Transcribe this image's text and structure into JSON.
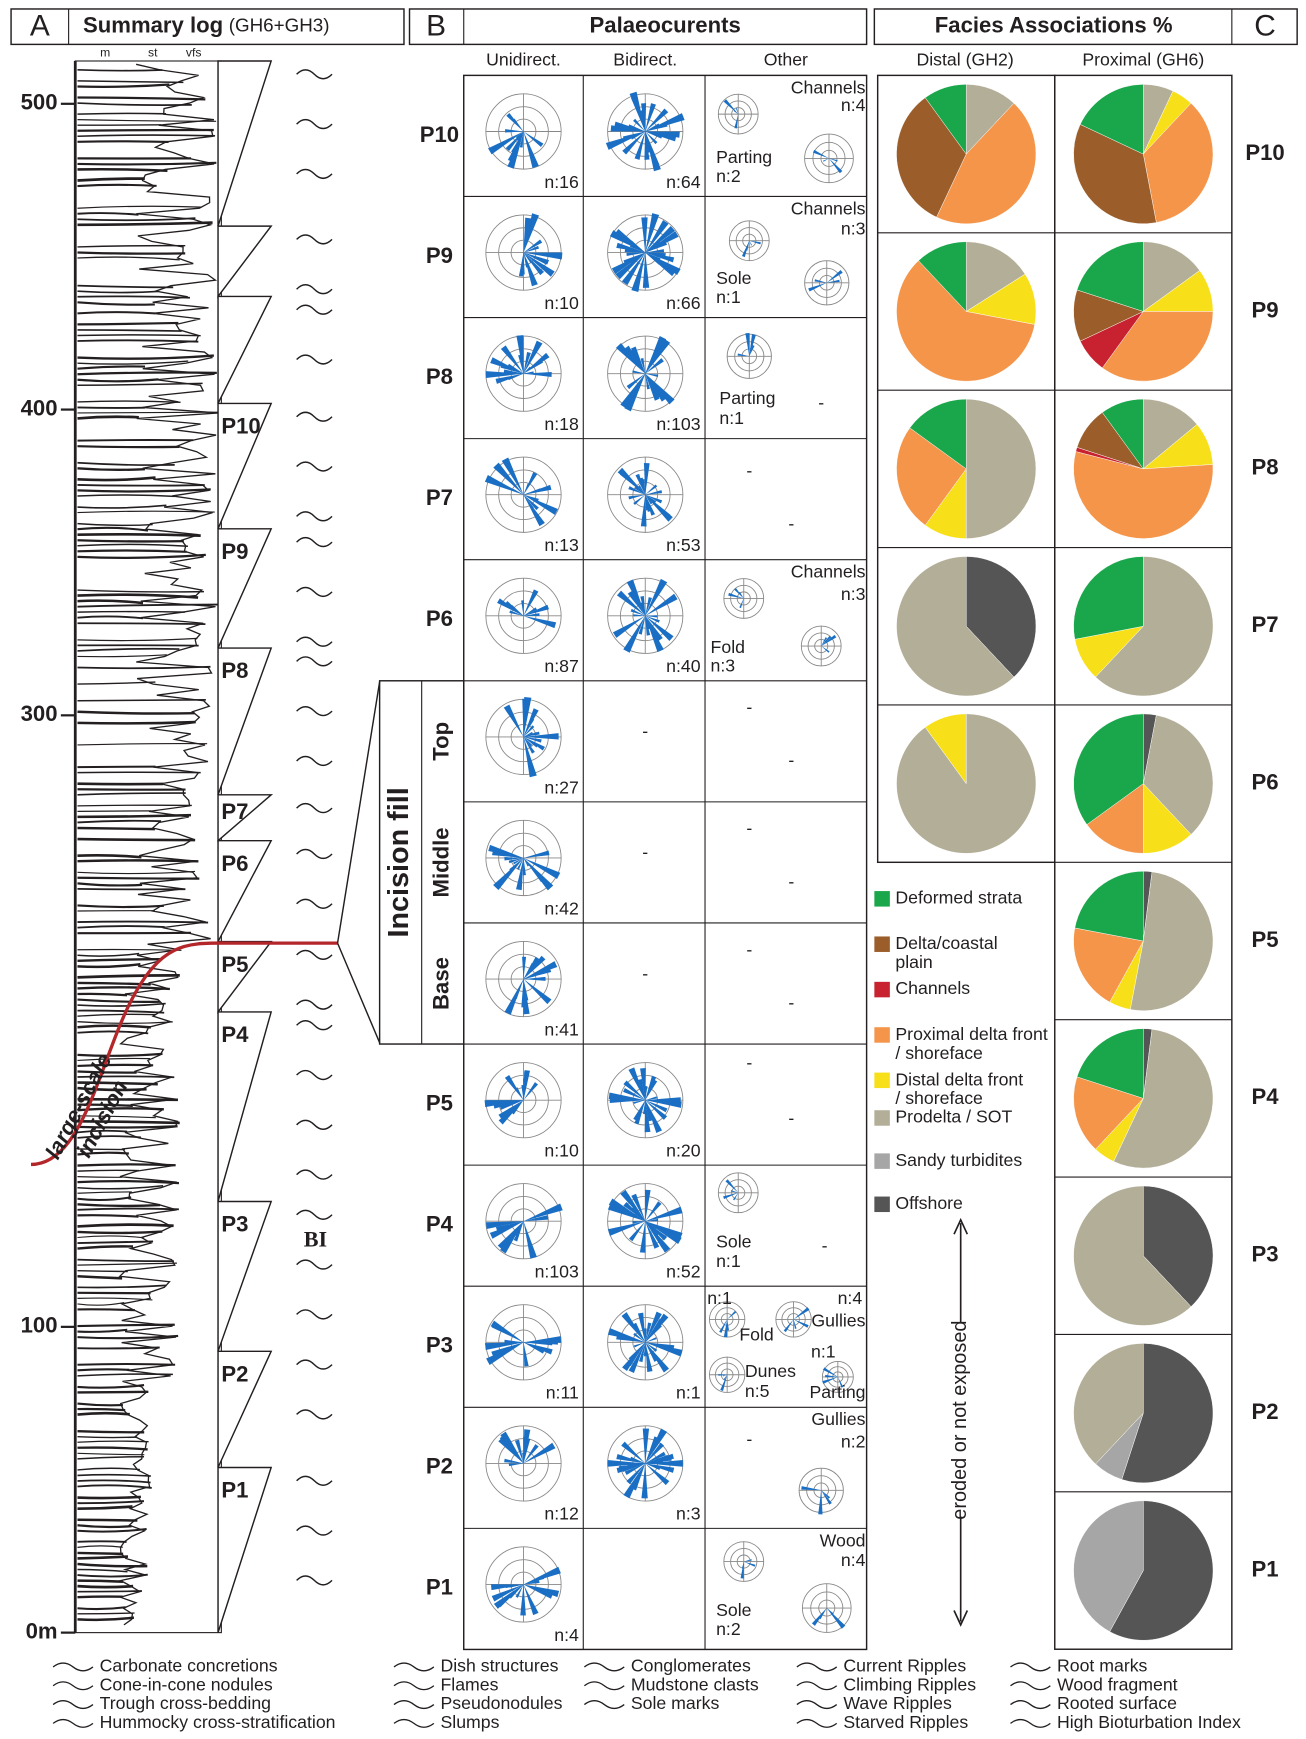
{
  "panel_a": {
    "letter": "A",
    "title": "Summary log",
    "subtitle": "(GH6+GH3)",
    "grain_sizes": [
      "m",
      "st",
      "vfs"
    ],
    "ylim": [
      0,
      514
    ],
    "yticks": [
      {
        "value": 0,
        "label": "0m"
      },
      100,
      300,
      400,
      500
    ],
    "sequences": [
      {
        "name": "P1",
        "base": 0,
        "top": 54
      },
      {
        "name": "P2",
        "base": 54,
        "top": 92
      },
      {
        "name": "P3",
        "base": 92,
        "top": 141
      },
      {
        "name": "P4",
        "base": 141,
        "top": 203
      },
      {
        "name": "P5",
        "base": 203,
        "top": 226
      },
      {
        "name": "P6",
        "base": 226,
        "top": 259
      },
      {
        "name": "P7",
        "base": 259,
        "top": 274
      },
      {
        "name": "P8",
        "base": 274,
        "top": 322
      },
      {
        "name": "P9",
        "base": 322,
        "top": 361
      },
      {
        "name": "P10",
        "base": 361,
        "top": 402
      },
      {
        "name": null,
        "base": 402,
        "top": 437
      },
      {
        "name": null,
        "base": 437,
        "top": 460
      },
      {
        "name": null,
        "base": 460,
        "top": 514
      }
    ],
    "annotation": [
      "large-scale",
      "incision"
    ],
    "bi_symbol": "BI"
  },
  "panel_b": {
    "letter": "B",
    "title": "Palaeocurents",
    "columns": [
      "Unidirect.",
      "Bidirect.",
      "Other"
    ],
    "incision_label": "Incision fill",
    "rows": [
      {
        "label": "P10",
        "unidirectional": "n:16",
        "bidirectional": "n:64",
        "other": [
          "Channels",
          "n:4",
          "Parting",
          "n:2"
        ]
      },
      {
        "label": "P9",
        "unidirectional": "n:10",
        "bidirectional": "n:66",
        "other": [
          "Channels",
          "n:3",
          "Sole",
          "n:1"
        ]
      },
      {
        "label": "P8",
        "unidirectional": "n:18",
        "bidirectional": "n:103",
        "other": [
          "Parting",
          "n:1",
          "-"
        ]
      },
      {
        "label": "P7",
        "unidirectional": "n:13",
        "bidirectional": "n:53",
        "other": [
          "-",
          "-"
        ]
      },
      {
        "label": "P6",
        "unidirectional": "n:87",
        "bidirectional": "n:40",
        "other": [
          "Channels",
          "n:3",
          "Fold",
          "n:3"
        ]
      },
      {
        "label": "Top",
        "unidirectional": "n:27",
        "bidirectional": "-",
        "other": [
          "-",
          "-"
        ]
      },
      {
        "label": "Middle",
        "unidirectional": "n:42",
        "bidirectional": "-",
        "other": [
          "-",
          "-"
        ]
      },
      {
        "label": "Base",
        "unidirectional": "n:41",
        "bidirectional": "-",
        "other": [
          "-",
          "-"
        ]
      },
      {
        "label": "P5",
        "unidirectional": "n:10",
        "bidirectional": "n:20",
        "other": [
          "-",
          "-"
        ]
      },
      {
        "label": "P4",
        "unidirectional": "n:103",
        "bidirectional": "n:52",
        "other": [
          "Sole",
          "n:1",
          "-"
        ]
      },
      {
        "label": "P3",
        "unidirectional": "n:11",
        "bidirectional": "n:1",
        "other": [
          "n:1",
          "Fold",
          "n:4",
          "Gullies",
          "Dunes",
          "n:5",
          "n:1",
          "Parting"
        ]
      },
      {
        "label": "P2",
        "unidirectional": "n:12",
        "bidirectional": "n:3",
        "other": [
          "-",
          "Gullies",
          "n:2"
        ]
      },
      {
        "label": "P1",
        "unidirectional": "n:4",
        "bidirectional": null,
        "other": [
          "Sole",
          "n:2",
          "Wood",
          "n:4"
        ]
      }
    ]
  },
  "panel_c": {
    "letter": "C",
    "title": "Facies Associations %",
    "distal_title": "Distal (GH2)",
    "proximal_title": "Proximal (GH6)",
    "legend": [
      {
        "name": "Deformed strata",
        "color": "#1aa64a"
      },
      {
        "name": "Delta/coastal plain",
        "color": "#9b5e2a"
      },
      {
        "name": "Channels",
        "color": "#c8212f"
      },
      {
        "name": "Proximal delta front / shoreface",
        "color": "#f4954a"
      },
      {
        "name": "Distal delta front / shoreface",
        "color": "#f7e01a"
      },
      {
        "name": "Prodelta / SOT",
        "color": "#b3ae98"
      },
      {
        "name": "Sandy turbidites",
        "color": "#a6a6a6"
      },
      {
        "name": "Offshore",
        "color": "#555555"
      }
    ],
    "distal": [
      [
        10,
        33,
        0,
        45,
        0,
        12,
        0,
        0
      ],
      [
        12,
        0,
        0,
        60,
        12,
        16,
        0,
        0
      ],
      [
        15,
        0,
        0,
        25,
        10,
        50,
        0,
        0
      ],
      [
        0,
        0,
        0,
        0,
        0,
        62,
        0,
        38
      ],
      [
        0,
        0,
        0,
        0,
        10,
        90,
        0,
        0
      ]
    ],
    "proximal": [
      {
        "label": "P10",
        "values": [
          18,
          35,
          0,
          35,
          5,
          7,
          0,
          0
        ]
      },
      {
        "label": "P9",
        "values": [
          20,
          12,
          8,
          35,
          10,
          15,
          0,
          0
        ]
      },
      {
        "label": "P8",
        "values": [
          10,
          10,
          1,
          55,
          10,
          14,
          0,
          0
        ]
      },
      {
        "label": "P7",
        "values": [
          28,
          0,
          0,
          0,
          10,
          62,
          0,
          0
        ]
      },
      {
        "label": "P6",
        "values": [
          35,
          0,
          0,
          15,
          12,
          35,
          0,
          3
        ]
      },
      {
        "label": "P5",
        "values": [
          22,
          0,
          0,
          20,
          5,
          51,
          0,
          2
        ]
      },
      {
        "label": "P4",
        "values": [
          20,
          0,
          0,
          18,
          5,
          55,
          0,
          2
        ]
      },
      {
        "label": "P3",
        "values": [
          0,
          0,
          0,
          0,
          0,
          62,
          0,
          38
        ]
      },
      {
        "label": "P2",
        "values": [
          0,
          0,
          0,
          0,
          0,
          38,
          7,
          55
        ]
      },
      {
        "label": "P1",
        "values": [
          0,
          0,
          0,
          0,
          0,
          0,
          42,
          58
        ]
      }
    ],
    "note": "eroded or not exposed"
  },
  "symbols": [
    [
      "Carbonate concretions",
      "Cone-in-cone nodules",
      "Trough cross-bedding",
      "Hummocky cross-stratification"
    ],
    [
      "Dish structures",
      "Flames",
      "Pseudonodules",
      "Slumps"
    ],
    [
      "Conglomerates",
      "Mudstone clasts",
      "Sole marks"
    ],
    [
      "Current Ripples",
      "Climbing Ripples",
      "Wave Ripples",
      "Starved Ripples"
    ],
    [
      "Root marks",
      "Wood fragment",
      "Rooted surface",
      "High Bioturbation Index"
    ]
  ]
}
